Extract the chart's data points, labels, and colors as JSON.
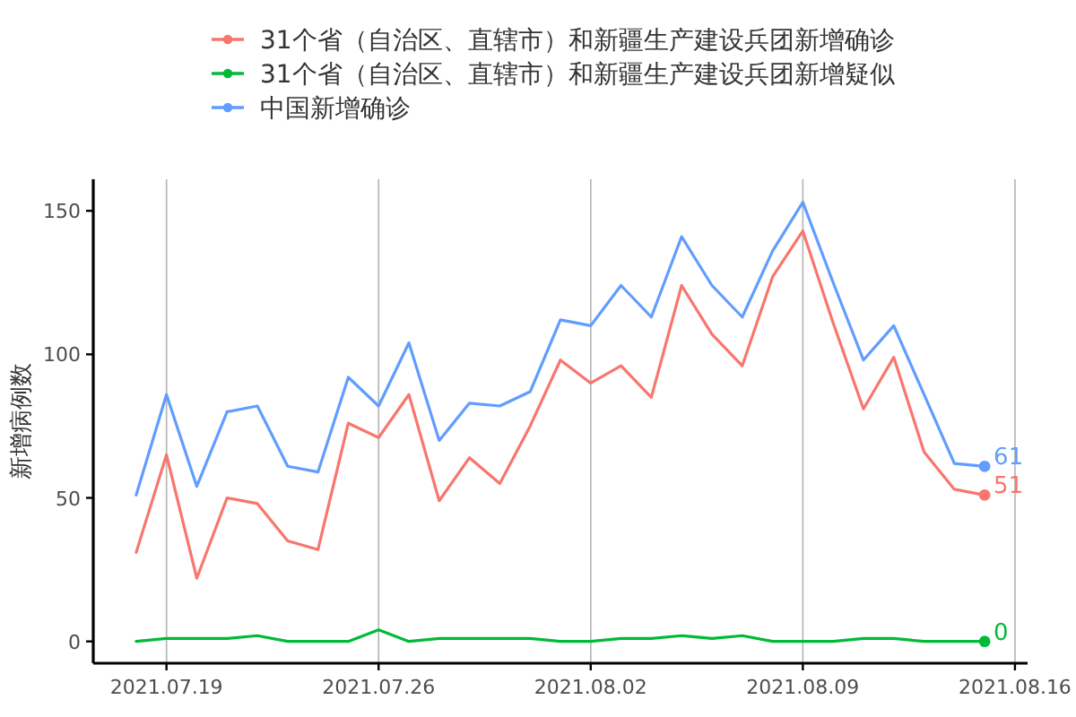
{
  "chart_data": {
    "type": "line",
    "ylabel": "新增病例数",
    "x": [
      "2021-07-18",
      "2021-07-19",
      "2021-07-20",
      "2021-07-21",
      "2021-07-22",
      "2021-07-23",
      "2021-07-24",
      "2021-07-25",
      "2021-07-26",
      "2021-07-27",
      "2021-07-28",
      "2021-07-29",
      "2021-07-30",
      "2021-07-31",
      "2021-08-01",
      "2021-08-02",
      "2021-08-03",
      "2021-08-04",
      "2021-08-05",
      "2021-08-06",
      "2021-08-07",
      "2021-08-08",
      "2021-08-09",
      "2021-08-10",
      "2021-08-11",
      "2021-08-12",
      "2021-08-13",
      "2021-08-14",
      "2021-08-15"
    ],
    "series": [
      {
        "name": "31个省（自治区、直辖市）和新疆生产建设兵团新增确诊",
        "color": "#f8766d",
        "values": [
          31,
          65,
          22,
          50,
          48,
          35,
          32,
          76,
          71,
          86,
          49,
          64,
          55,
          75,
          98,
          90,
          96,
          85,
          124,
          107,
          96,
          127,
          143,
          111,
          81,
          99,
          66,
          53,
          51
        ],
        "value_labels": [
          null,
          null,
          null,
          null,
          null,
          null,
          null,
          null,
          null,
          null,
          null,
          null,
          null,
          null,
          null,
          null,
          null,
          null,
          null,
          null,
          null,
          null,
          null,
          null,
          null,
          null,
          null,
          null,
          "51"
        ]
      },
      {
        "name": "31个省（自治区、直辖市）和新疆生产建设兵团新增疑似",
        "color": "#00ba38",
        "values": [
          0,
          1,
          1,
          1,
          2,
          0,
          0,
          0,
          4,
          0,
          1,
          1,
          1,
          1,
          0,
          0,
          1,
          1,
          2,
          1,
          2,
          0,
          0,
          0,
          1,
          1,
          0,
          0,
          0
        ],
        "value_labels": [
          null,
          null,
          null,
          null,
          null,
          null,
          null,
          null,
          null,
          null,
          null,
          null,
          null,
          null,
          null,
          null,
          null,
          null,
          null,
          null,
          null,
          null,
          null,
          null,
          null,
          null,
          null,
          null,
          "0"
        ]
      },
      {
        "name": "中国新增确诊",
        "color": "#619cff",
        "values": [
          51,
          86,
          54,
          80,
          82,
          61,
          59,
          92,
          82,
          104,
          70,
          83,
          82,
          87,
          112,
          110,
          124,
          113,
          141,
          124,
          113,
          136,
          153,
          125,
          98,
          110,
          86,
          62,
          61
        ],
        "value_labels": [
          null,
          null,
          null,
          null,
          null,
          null,
          null,
          null,
          null,
          null,
          null,
          null,
          null,
          null,
          null,
          null,
          null,
          null,
          null,
          null,
          null,
          null,
          null,
          null,
          null,
          null,
          null,
          null,
          "61"
        ]
      }
    ],
    "xlim": [
      "2021-07-16T14:00",
      "2021-08-16T10:00"
    ],
    "xticks": [
      {
        "value": "2021-07-19",
        "label": "2021.07.19"
      },
      {
        "value": "2021-07-26",
        "label": "2021.07.26"
      },
      {
        "value": "2021-08-02",
        "label": "2021.08.02"
      },
      {
        "value": "2021-08-09",
        "label": "2021.08.09"
      },
      {
        "value": "2021-08-16",
        "label": "2021.08.16"
      }
    ],
    "ylim": [
      -7.6,
      161
    ],
    "yticks": [
      0,
      50,
      100,
      150
    ],
    "grid": "x",
    "legend": "top",
    "marker": "none",
    "line_style": "solid"
  }
}
